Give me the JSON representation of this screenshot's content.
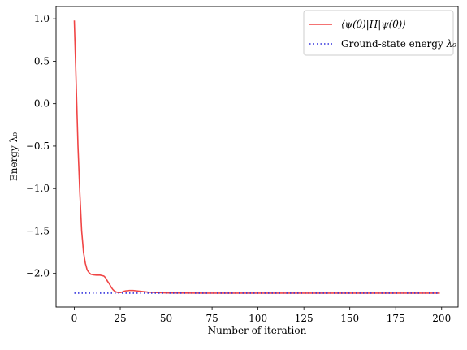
{
  "chart_data": {
    "type": "line",
    "xlabel": "Number of iteration",
    "ylabel": "Energy λ₀",
    "xlim": [
      -9.95,
      208.95
    ],
    "ylim": [
      -2.395,
      1.145
    ],
    "xticks": [
      0,
      25,
      50,
      75,
      100,
      125,
      150,
      175,
      200
    ],
    "yticks": [
      -2.0,
      -1.5,
      -1.0,
      -0.5,
      0.0,
      0.5,
      1.0
    ],
    "ytick_labels": [
      "−2.0",
      "−1.5",
      "−1.0",
      "−0.5",
      "0.0",
      "0.5",
      "1.0"
    ],
    "grid": false,
    "legend_position": "top-right",
    "series": [
      {
        "name": "⟨ψ(θ)|H|ψ(θ)⟩",
        "style": "solid",
        "color": "#f04545",
        "x": [
          0,
          1,
          2,
          3,
          4,
          5,
          6,
          7,
          8,
          9,
          10,
          12,
          14,
          16,
          17,
          18,
          19,
          20,
          21,
          22,
          23,
          24,
          25,
          26,
          27,
          28,
          30,
          32,
          34,
          36,
          38,
          40,
          45,
          50,
          60,
          80,
          100,
          120,
          150,
          180,
          199
        ],
        "y": [
          0.98,
          0.25,
          -0.5,
          -1.05,
          -1.5,
          -1.75,
          -1.88,
          -1.96,
          -1.99,
          -2.01,
          -2.015,
          -2.02,
          -2.02,
          -2.03,
          -2.05,
          -2.09,
          -2.12,
          -2.16,
          -2.19,
          -2.21,
          -2.22,
          -2.225,
          -2.225,
          -2.22,
          -2.21,
          -2.205,
          -2.2,
          -2.2,
          -2.205,
          -2.21,
          -2.215,
          -2.22,
          -2.225,
          -2.23,
          -2.231,
          -2.232,
          -2.232,
          -2.232,
          -2.232,
          -2.232,
          -2.232
        ]
      },
      {
        "name": "Ground-state energy λ₀",
        "style": "dotted",
        "color": "#3333dd",
        "x": [
          0,
          199
        ],
        "y": [
          -2.232,
          -2.232
        ]
      }
    ]
  },
  "legend": {
    "entries": [
      {
        "label_prefix": "⟨ψ(θ)|H|ψ(θ)⟩",
        "label_math": ""
      },
      {
        "label_prefix": "Ground-state energy ",
        "label_math": "λ₀"
      }
    ]
  },
  "colors": {
    "expectation_line": "#f04545",
    "ground_line": "#3333dd",
    "axes": "#000000",
    "legend_border": "#cccccc"
  }
}
